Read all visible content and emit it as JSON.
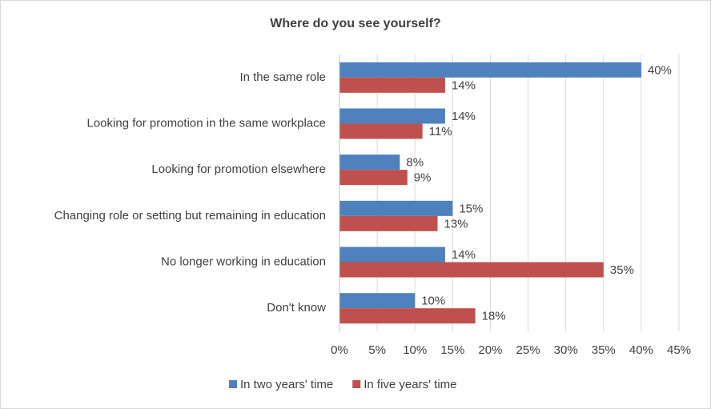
{
  "chart_data": {
    "type": "bar",
    "orientation": "horizontal",
    "title": "Where do you see yourself?",
    "categories": [
      "In the same role",
      "Looking for promotion in the same workplace",
      "Looking for promotion elsewhere",
      "Changing role or setting but remaining in education",
      "No longer working in education",
      "Don't know"
    ],
    "series": [
      {
        "name": "In two years' time",
        "color": "#4f81bd",
        "values": [
          40,
          14,
          8,
          15,
          14,
          10
        ],
        "value_labels": [
          "40%",
          "14%",
          "8%",
          "15%",
          "14%",
          "10%"
        ]
      },
      {
        "name": "In five years' time",
        "color": "#c0504d",
        "values": [
          14,
          11,
          9,
          13,
          35,
          18
        ],
        "value_labels": [
          "14%",
          "11%",
          "9%",
          "13%",
          "35%",
          "18%"
        ]
      }
    ],
    "xlim": [
      0,
      45
    ],
    "xticks": [
      {
        "value": 0,
        "label": "0%"
      },
      {
        "value": 5,
        "label": "5%"
      },
      {
        "value": 10,
        "label": "10%"
      },
      {
        "value": 15,
        "label": "15%"
      },
      {
        "value": 20,
        "label": "20%"
      },
      {
        "value": 25,
        "label": "25%"
      },
      {
        "value": 30,
        "label": "30%"
      },
      {
        "value": 35,
        "label": "35%"
      },
      {
        "value": 40,
        "label": "40%"
      },
      {
        "value": 45,
        "label": "45%"
      }
    ],
    "grid": true,
    "legend": "bottom"
  }
}
